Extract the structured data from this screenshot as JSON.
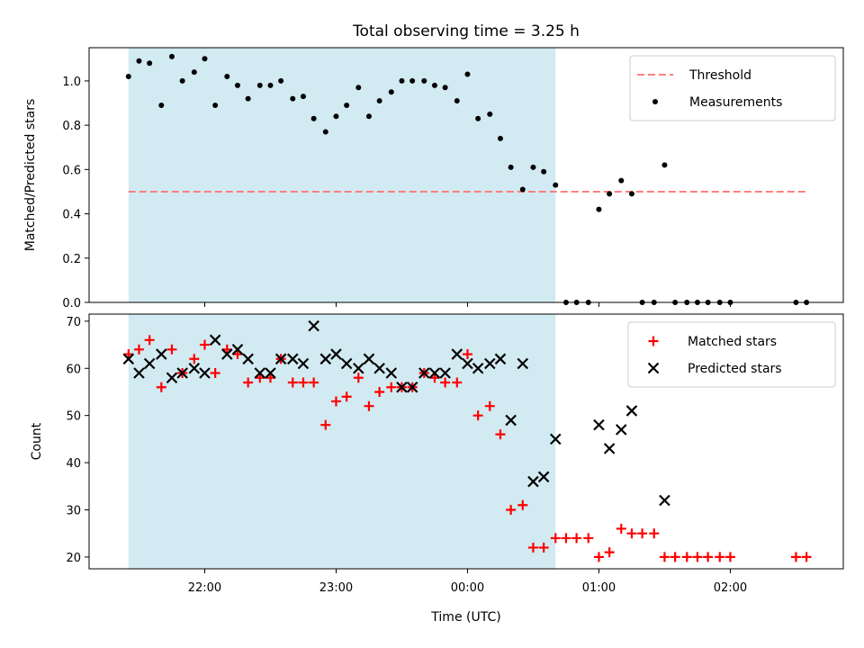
{
  "chart_data": {
    "type": "scatter",
    "title": "Total observing time = 3.25 h",
    "xlabel": "Time (UTC)",
    "x_unit": "hours from 00:00 UTC",
    "x_range": [
      -2.88,
      2.86
    ],
    "x_ticks": [
      {
        "value": -2,
        "label": "22:00"
      },
      {
        "value": -1,
        "label": "23:00"
      },
      {
        "value": 0,
        "label": "00:00"
      },
      {
        "value": 1,
        "label": "01:00"
      },
      {
        "value": 2,
        "label": "02:00"
      }
    ],
    "shaded_interval": {
      "start": -2.58,
      "end": 0.67,
      "color": "#add8e6"
    },
    "panels": [
      {
        "id": "ratio",
        "ylabel": "Matched/Predicted stars",
        "ylim": [
          0.0,
          1.15
        ],
        "y_ticks": [
          0.0,
          0.2,
          0.4,
          0.6,
          0.8,
          1.0
        ],
        "y_tick_labels": [
          "0.0",
          "0.2",
          "0.4",
          "0.6",
          "0.8",
          "1.0"
        ],
        "legend_position": "upper right",
        "threshold": {
          "name": "Threshold",
          "value": 0.5,
          "x_range": [
            -2.58,
            2.58
          ],
          "color": "#ff7f7f",
          "style": "dashed"
        },
        "series": [
          {
            "name": "Measurements",
            "color": "#000000",
            "marker": "dot",
            "x": [
              -2.58,
              -2.5,
              -2.42,
              -2.33,
              -2.25,
              -2.17,
              -2.08,
              -2.0,
              -1.92,
              -1.83,
              -1.75,
              -1.67,
              -1.58,
              -1.5,
              -1.42,
              -1.33,
              -1.25,
              -1.17,
              -1.08,
              -1.0,
              -0.92,
              -0.83,
              -0.75,
              -0.67,
              -0.58,
              -0.5,
              -0.42,
              -0.33,
              -0.25,
              -0.17,
              -0.08,
              0.0,
              0.08,
              0.17,
              0.25,
              0.33,
              0.42,
              0.5,
              0.58,
              0.67,
              0.75,
              0.83,
              0.92,
              1.0,
              1.08,
              1.17,
              1.25,
              1.33,
              1.42,
              1.5,
              1.58,
              1.67,
              1.75,
              1.83,
              1.92,
              2.0,
              2.5,
              2.58
            ],
            "y": [
              1.02,
              1.09,
              1.08,
              0.89,
              1.11,
              1.0,
              1.04,
              1.1,
              0.89,
              1.02,
              0.98,
              0.92,
              0.98,
              0.98,
              1.0,
              0.92,
              0.93,
              0.83,
              0.77,
              0.84,
              0.89,
              0.97,
              0.84,
              0.91,
              0.95,
              1.0,
              1.0,
              1.0,
              0.98,
              0.97,
              0.91,
              1.03,
              0.83,
              0.85,
              0.74,
              0.61,
              0.51,
              0.61,
              0.59,
              0.53,
              0.0,
              0.0,
              0.0,
              0.42,
              0.49,
              0.55,
              0.49,
              0.0,
              0.0,
              0.62,
              0.0,
              0.0,
              0.0,
              0.0,
              0.0,
              0.0,
              0.0,
              0.0
            ]
          }
        ]
      },
      {
        "id": "counts",
        "ylabel": "Count",
        "ylim": [
          17.5,
          71.5
        ],
        "y_ticks": [
          20,
          30,
          40,
          50,
          60,
          70
        ],
        "y_tick_labels": [
          "20",
          "30",
          "40",
          "50",
          "60",
          "70"
        ],
        "legend_position": "upper right",
        "series": [
          {
            "name": "Matched stars",
            "color": "#ff0000",
            "marker": "plus",
            "x": [
              -2.58,
              -2.5,
              -2.42,
              -2.33,
              -2.25,
              -2.17,
              -2.08,
              -2.0,
              -1.92,
              -1.83,
              -1.75,
              -1.67,
              -1.58,
              -1.5,
              -1.42,
              -1.33,
              -1.25,
              -1.17,
              -1.08,
              -1.0,
              -0.92,
              -0.83,
              -0.75,
              -0.67,
              -0.58,
              -0.5,
              -0.42,
              -0.33,
              -0.25,
              -0.17,
              -0.08,
              0.0,
              0.08,
              0.17,
              0.25,
              0.33,
              0.42,
              0.5,
              0.58,
              0.67,
              0.75,
              0.83,
              0.92,
              1.0,
              1.08,
              1.17,
              1.25,
              1.33,
              1.42,
              1.5,
              1.58,
              1.67,
              1.75,
              1.83,
              1.92,
              2.0,
              2.5,
              2.58
            ],
            "y": [
              63,
              64,
              66,
              56,
              64,
              59,
              62,
              65,
              59,
              64,
              63,
              57,
              58,
              58,
              62,
              57,
              57,
              57,
              48,
              53,
              54,
              58,
              52,
              55,
              56,
              56,
              56,
              59,
              58,
              57,
              57,
              63,
              50,
              52,
              46,
              30,
              31,
              22,
              22,
              24,
              24,
              24,
              24,
              20,
              21,
              26,
              25,
              25,
              25,
              20,
              20,
              20,
              20,
              20,
              20,
              20,
              20,
              20
            ]
          },
          {
            "name": "Predicted stars",
            "color": "#000000",
            "marker": "x",
            "x": [
              -2.58,
              -2.5,
              -2.42,
              -2.33,
              -2.25,
              -2.17,
              -2.08,
              -2.0,
              -1.92,
              -1.83,
              -1.75,
              -1.67,
              -1.58,
              -1.5,
              -1.42,
              -1.33,
              -1.25,
              -1.17,
              -1.08,
              -1.0,
              -0.92,
              -0.83,
              -0.75,
              -0.67,
              -0.58,
              -0.5,
              -0.42,
              -0.33,
              -0.25,
              -0.17,
              -0.08,
              0.0,
              0.08,
              0.17,
              0.25,
              0.33,
              0.42,
              0.5,
              0.58,
              0.67,
              1.0,
              1.08,
              1.17,
              1.25,
              1.5
            ],
            "y": [
              62,
              59,
              61,
              63,
              58,
              59,
              60,
              59,
              66,
              63,
              64,
              62,
              59,
              59,
              62,
              62,
              61,
              69,
              62,
              63,
              61,
              60,
              62,
              60,
              59,
              56,
              56,
              59,
              59,
              59,
              63,
              61,
              60,
              61,
              62,
              49,
              61,
              36,
              37,
              45,
              48,
              43,
              47,
              51,
              32
            ]
          }
        ]
      }
    ]
  }
}
